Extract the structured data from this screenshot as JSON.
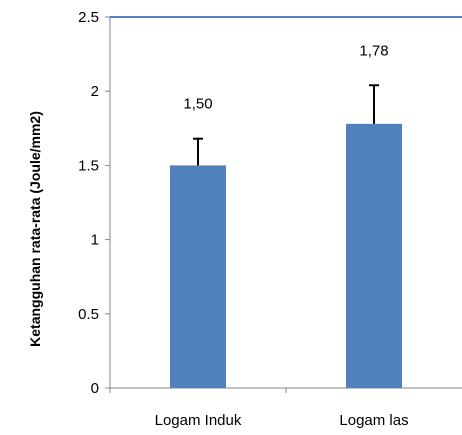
{
  "chart_data": {
    "type": "bar",
    "title": "",
    "xlabel": "",
    "ylabel": "Ketangguhan rata-rata (Joule/mm2)",
    "categories": [
      "Logam Induk",
      "Logam las"
    ],
    "values": [
      1.5,
      1.78
    ],
    "data_labels": [
      "1,50",
      "1,78"
    ],
    "error_plus": [
      0.18,
      0.26
    ],
    "ylim": [
      0,
      2.5
    ],
    "yticks": [
      0,
      0.5,
      1,
      1.5,
      2,
      2.5
    ],
    "ytick_labels": [
      "0",
      "0.5",
      "1",
      "1.5",
      "2",
      "2.5"
    ],
    "grid": false,
    "legend": "none",
    "colors": {
      "bar": "#4f81bd",
      "top_line": "#4f81bd",
      "axis": "#868686",
      "error_bar": "#000000"
    }
  }
}
